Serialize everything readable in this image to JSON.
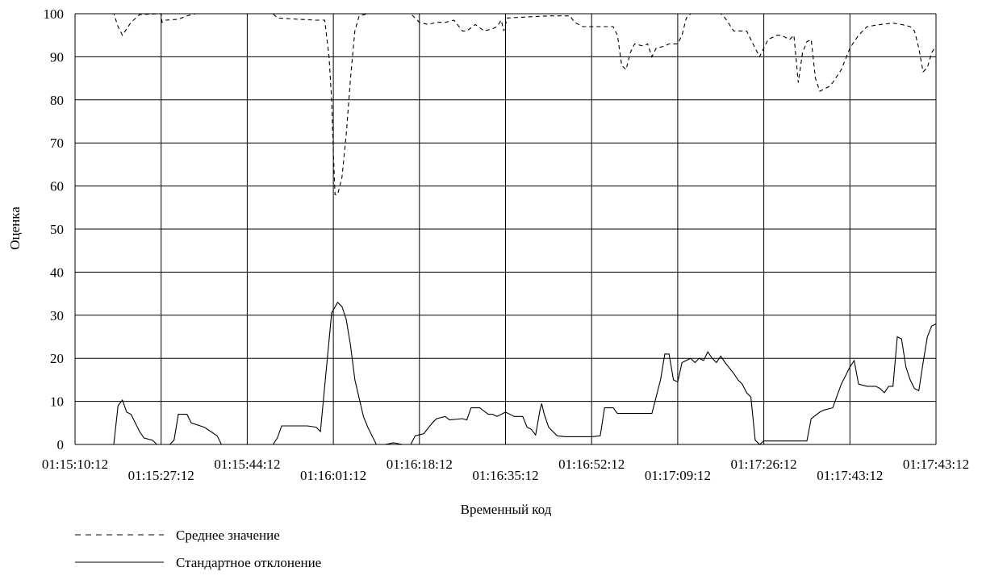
{
  "chart_data": {
    "type": "line",
    "title": "",
    "xlabel": "Временный код",
    "ylabel": "Оценка",
    "ylim": [
      0,
      100
    ],
    "yticks": [
      0,
      10,
      20,
      30,
      40,
      50,
      60,
      70,
      80,
      90,
      100
    ],
    "x_tick_labels": [
      "01:15:10:12",
      "01:15:27:12",
      "01:15:44:12",
      "01:16:01:12",
      "01:16:18:12",
      "01:16:35:12",
      "01:16:52:12",
      "01:17:09:12",
      "01:17:26:12",
      "01:17:43:12",
      "01:17:43:12"
    ],
    "grid": true,
    "legend_position": "bottom-left",
    "series": [
      {
        "name": "Среднее значение",
        "style": "dashed",
        "color": "#000000",
        "points": [
          [
            0,
            100
          ],
          [
            0.45,
            100
          ],
          [
            0.5,
            97
          ],
          [
            0.55,
            95
          ],
          [
            0.65,
            98
          ],
          [
            0.75,
            99.8
          ],
          [
            1,
            100
          ],
          [
            1.01,
            98
          ],
          [
            1.05,
            98.5
          ],
          [
            1.2,
            98.7
          ],
          [
            1.3,
            99.5
          ],
          [
            1.4,
            100
          ],
          [
            2.3,
            100
          ],
          [
            2.35,
            99
          ],
          [
            2.6,
            98.7
          ],
          [
            2.8,
            98.5
          ],
          [
            2.9,
            98.5
          ],
          [
            2.95,
            90
          ],
          [
            2.98,
            80
          ],
          [
            3.0,
            68
          ],
          [
            3.02,
            58
          ],
          [
            3.05,
            58
          ],
          [
            3.1,
            62
          ],
          [
            3.15,
            72
          ],
          [
            3.2,
            85
          ],
          [
            3.25,
            96
          ],
          [
            3.3,
            99.5
          ],
          [
            3.4,
            100
          ],
          [
            3.9,
            100
          ],
          [
            4.0,
            98
          ],
          [
            4.1,
            97.5
          ],
          [
            4.2,
            98
          ],
          [
            4.3,
            98
          ],
          [
            4.4,
            98.5
          ],
          [
            4.5,
            96
          ],
          [
            4.55,
            96
          ],
          [
            4.65,
            97.5
          ],
          [
            4.75,
            96
          ],
          [
            4.85,
            96.5
          ],
          [
            4.9,
            97
          ],
          [
            4.95,
            98.5
          ],
          [
            4.98,
            96
          ],
          [
            5.02,
            99
          ],
          [
            5.5,
            99.5
          ],
          [
            5.75,
            99.5
          ],
          [
            5.8,
            98
          ],
          [
            5.9,
            97
          ],
          [
            6.05,
            97
          ],
          [
            6.25,
            97
          ],
          [
            6.3,
            95
          ],
          [
            6.35,
            88
          ],
          [
            6.4,
            87
          ],
          [
            6.45,
            91
          ],
          [
            6.5,
            93
          ],
          [
            6.6,
            92.5
          ],
          [
            6.65,
            93
          ],
          [
            6.7,
            90
          ],
          [
            6.75,
            92
          ],
          [
            6.85,
            92.5
          ],
          [
            6.9,
            93
          ],
          [
            7.0,
            93
          ],
          [
            7.05,
            95
          ],
          [
            7.1,
            99
          ],
          [
            7.15,
            100
          ],
          [
            7.5,
            100
          ],
          [
            7.55,
            99
          ],
          [
            7.65,
            96
          ],
          [
            7.8,
            96
          ],
          [
            7.9,
            92
          ],
          [
            7.95,
            90
          ],
          [
            8.05,
            94
          ],
          [
            8.15,
            95
          ],
          [
            8.2,
            95
          ],
          [
            8.3,
            94
          ],
          [
            8.35,
            95
          ],
          [
            8.4,
            84
          ],
          [
            8.45,
            91
          ],
          [
            8.5,
            93.5
          ],
          [
            8.55,
            94
          ],
          [
            8.6,
            85
          ],
          [
            8.65,
            82
          ],
          [
            8.75,
            83
          ],
          [
            8.8,
            84
          ],
          [
            8.9,
            87
          ],
          [
            9.0,
            92
          ],
          [
            9.1,
            95
          ],
          [
            9.2,
            97
          ],
          [
            9.35,
            97.5
          ],
          [
            9.5,
            97.8
          ],
          [
            9.6,
            97.5
          ],
          [
            9.7,
            97
          ],
          [
            9.75,
            96
          ],
          [
            9.8,
            92
          ],
          [
            9.85,
            86.5
          ],
          [
            9.9,
            87.5
          ],
          [
            9.95,
            91
          ],
          [
            10,
            92.5
          ]
        ]
      },
      {
        "name": "Стандартное отклонение",
        "style": "solid",
        "color": "#000000",
        "points": [
          [
            0,
            0
          ],
          [
            0.45,
            0
          ],
          [
            0.5,
            9
          ],
          [
            0.55,
            10.3
          ],
          [
            0.6,
            7.5
          ],
          [
            0.65,
            7
          ],
          [
            0.75,
            3
          ],
          [
            0.8,
            1.5
          ],
          [
            0.9,
            1
          ],
          [
            0.95,
            0
          ],
          [
            1.1,
            0
          ],
          [
            1.15,
            1
          ],
          [
            1.2,
            7
          ],
          [
            1.3,
            7
          ],
          [
            1.35,
            5
          ],
          [
            1.5,
            4
          ],
          [
            1.65,
            2
          ],
          [
            1.7,
            0
          ],
          [
            2.3,
            0
          ],
          [
            2.35,
            1.5
          ],
          [
            2.4,
            4.3
          ],
          [
            2.7,
            4.3
          ],
          [
            2.8,
            4
          ],
          [
            2.85,
            3
          ],
          [
            2.98,
            30.5
          ],
          [
            3.05,
            33
          ],
          [
            3.1,
            32
          ],
          [
            3.15,
            29
          ],
          [
            3.2,
            23
          ],
          [
            3.25,
            15
          ],
          [
            3.35,
            6.5
          ],
          [
            3.4,
            4
          ],
          [
            3.5,
            0
          ],
          [
            3.6,
            0
          ],
          [
            3.7,
            0.4
          ],
          [
            3.8,
            0
          ],
          [
            3.9,
            0
          ],
          [
            3.95,
            2
          ],
          [
            4.05,
            2.5
          ],
          [
            4.15,
            5
          ],
          [
            4.2,
            6
          ],
          [
            4.3,
            6.5
          ],
          [
            4.35,
            5.7
          ],
          [
            4.5,
            6
          ],
          [
            4.55,
            5.7
          ],
          [
            4.6,
            8.5
          ],
          [
            4.7,
            8.5
          ],
          [
            4.8,
            7
          ],
          [
            4.85,
            7
          ],
          [
            4.9,
            6.5
          ],
          [
            4.95,
            7
          ],
          [
            5.0,
            7.5
          ],
          [
            5.1,
            6.5
          ],
          [
            5.2,
            6.5
          ],
          [
            5.25,
            4
          ],
          [
            5.3,
            3.5
          ],
          [
            5.35,
            2.2
          ],
          [
            5.4,
            8
          ],
          [
            5.42,
            9.5
          ],
          [
            5.45,
            7
          ],
          [
            5.5,
            4
          ],
          [
            5.55,
            3
          ],
          [
            5.6,
            2
          ],
          [
            5.7,
            1.8
          ],
          [
            6.0,
            1.8
          ],
          [
            6.1,
            2
          ],
          [
            6.15,
            8.5
          ],
          [
            6.25,
            8.5
          ],
          [
            6.3,
            7.2
          ],
          [
            6.7,
            7.2
          ],
          [
            6.8,
            15
          ],
          [
            6.85,
            21
          ],
          [
            6.9,
            21
          ],
          [
            6.95,
            15
          ],
          [
            7.0,
            14.5
          ],
          [
            7.05,
            19
          ],
          [
            7.15,
            20
          ],
          [
            7.2,
            19
          ],
          [
            7.25,
            20
          ],
          [
            7.3,
            19.5
          ],
          [
            7.35,
            21.5
          ],
          [
            7.4,
            20
          ],
          [
            7.45,
            19
          ],
          [
            7.5,
            20.5
          ],
          [
            7.55,
            19
          ],
          [
            7.65,
            16.5
          ],
          [
            7.7,
            15
          ],
          [
            7.75,
            14
          ],
          [
            7.8,
            12
          ],
          [
            7.85,
            11
          ],
          [
            7.9,
            1
          ],
          [
            7.95,
            0
          ],
          [
            8.0,
            0.8
          ],
          [
            8.2,
            0.8
          ],
          [
            8.45,
            0.8
          ],
          [
            8.5,
            0.8
          ],
          [
            8.55,
            6
          ],
          [
            8.65,
            7.5
          ],
          [
            8.7,
            8
          ],
          [
            8.8,
            8.5
          ],
          [
            8.9,
            14
          ],
          [
            8.95,
            16
          ],
          [
            9.0,
            18
          ],
          [
            9.05,
            19.5
          ],
          [
            9.1,
            14
          ],
          [
            9.2,
            13.5
          ],
          [
            9.3,
            13.5
          ],
          [
            9.35,
            13
          ],
          [
            9.4,
            12
          ],
          [
            9.45,
            13.5
          ],
          [
            9.5,
            13.5
          ],
          [
            9.55,
            25
          ],
          [
            9.6,
            24.5
          ],
          [
            9.65,
            18
          ],
          [
            9.7,
            15
          ],
          [
            9.75,
            13
          ],
          [
            9.8,
            12.5
          ],
          [
            9.85,
            19
          ],
          [
            9.9,
            25
          ],
          [
            9.95,
            27.5
          ],
          [
            10,
            28
          ]
        ]
      }
    ]
  }
}
